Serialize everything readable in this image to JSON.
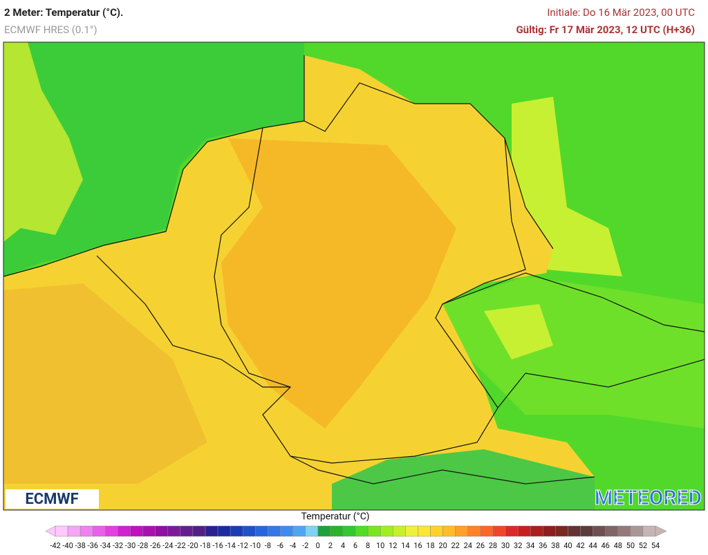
{
  "header": {
    "title": "2 Meter: Temperatur (°C).",
    "model": "ECMWF HRES (0.1°)",
    "init": "Initiale: Do 16 Mär 2023, 00 UTC",
    "valid": "Gültig: Fr 17 Mär 2023, 12 UTC (H+36)"
  },
  "map": {
    "logo_left": "ECMWF",
    "logo_right": "METEORED"
  },
  "legend": {
    "title": "Temperatur (°C)",
    "ticks": [
      -42,
      -40,
      -38,
      -36,
      -34,
      -32,
      -30,
      -28,
      -26,
      -24,
      -22,
      -20,
      -18,
      -16,
      -14,
      -12,
      -10,
      -8,
      -6,
      -4,
      -2,
      0,
      2,
      4,
      6,
      8,
      10,
      12,
      14,
      16,
      18,
      20,
      22,
      24,
      26,
      28,
      30,
      32,
      34,
      36,
      38,
      40,
      42,
      44,
      46,
      48,
      50,
      52,
      54
    ],
    "colors": [
      "#ffc8ff",
      "#f5a5f5",
      "#f080f0",
      "#e860e8",
      "#e040e0",
      "#d020d0",
      "#c010c0",
      "#a810b0",
      "#9010a0",
      "#7a1a98",
      "#641e90",
      "#501e88",
      "#2a2090",
      "#1a2aa0",
      "#1a3cb4",
      "#1e50c8",
      "#2864dc",
      "#3278e6",
      "#3c8cf0",
      "#50a5f0",
      "#80d2f5",
      "#1ea03c",
      "#28b428",
      "#32c832",
      "#50dc28",
      "#78e61e",
      "#a0f01e",
      "#c8f028",
      "#f0f03c",
      "#ffe632",
      "#ffd228",
      "#ffbe28",
      "#ffa028",
      "#ff8228",
      "#ff6428",
      "#f04628",
      "#dc2828",
      "#c81e1e",
      "#aa1e1e",
      "#8c1e1e",
      "#78281e",
      "#643232",
      "#5a3c3c",
      "#6e5050",
      "#826464",
      "#967878",
      "#aa9696",
      "#c8b4b4"
    ]
  }
}
